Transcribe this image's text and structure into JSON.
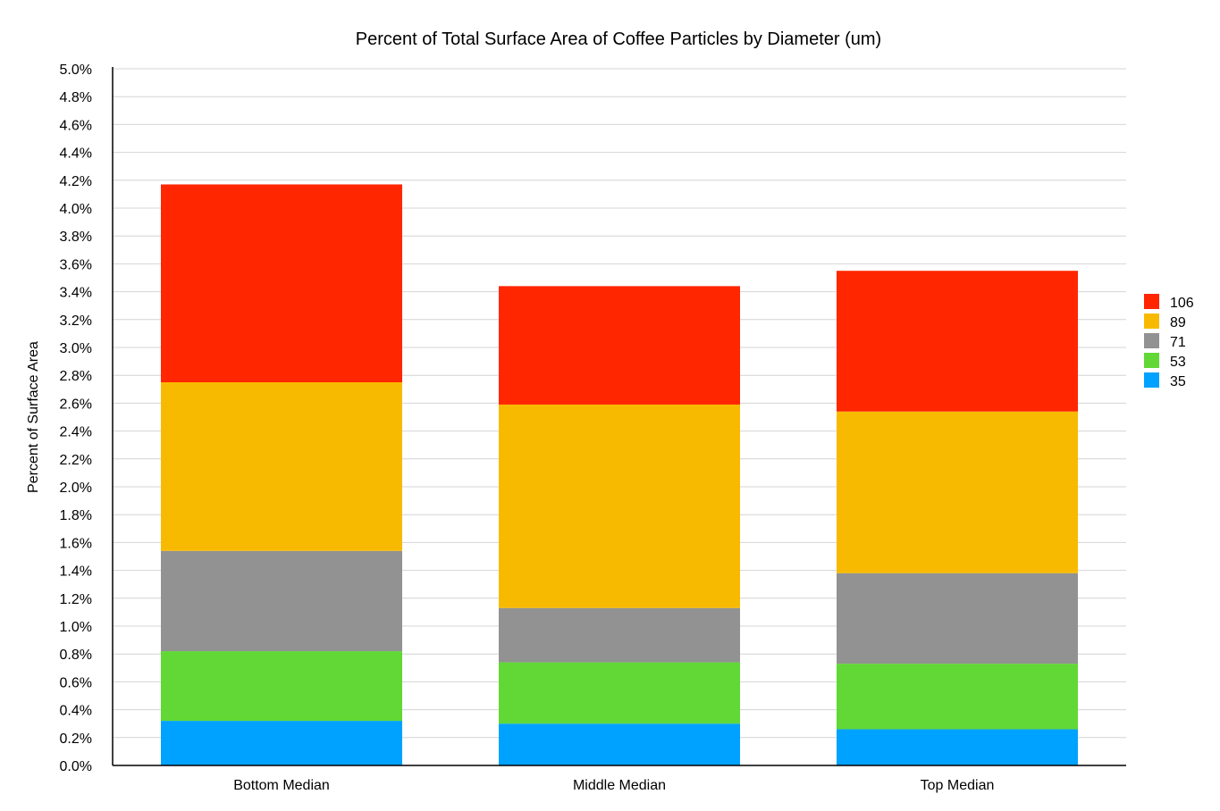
{
  "chart_data": {
    "type": "bar",
    "stacked": true,
    "title": "Percent of Total Surface Area of Coffee Particles by Diameter (um)",
    "xlabel": "",
    "ylabel": "Percent of Surface Area",
    "categories": [
      "Bottom Median",
      "Middle Median",
      "Top Median"
    ],
    "y_unit": "%",
    "ylim": [
      0,
      5.0
    ],
    "y_ticks": [
      "0.0%",
      "0.2%",
      "0.4%",
      "0.6%",
      "0.8%",
      "1.0%",
      "1.2%",
      "1.4%",
      "1.6%",
      "1.8%",
      "2.0%",
      "2.2%",
      "2.4%",
      "2.6%",
      "2.8%",
      "3.0%",
      "3.2%",
      "3.4%",
      "3.6%",
      "3.8%",
      "4.0%",
      "4.2%",
      "4.4%",
      "4.6%",
      "4.8%",
      "5.0%"
    ],
    "grid": true,
    "legend_position": "right",
    "series": [
      {
        "name": "35",
        "color": "#00a2ff",
        "values": [
          0.32,
          0.3,
          0.26
        ]
      },
      {
        "name": "53",
        "color": "#61d836",
        "values": [
          0.5,
          0.44,
          0.47
        ]
      },
      {
        "name": "71",
        "color": "#929292",
        "values": [
          0.72,
          0.39,
          0.65
        ]
      },
      {
        "name": "89",
        "color": "#f8ba00",
        "values": [
          1.21,
          1.46,
          1.16
        ]
      },
      {
        "name": "106",
        "color": "#ff2600",
        "values": [
          1.42,
          0.85,
          1.01
        ]
      }
    ],
    "legend_order": [
      "106",
      "89",
      "71",
      "53",
      "35"
    ]
  }
}
